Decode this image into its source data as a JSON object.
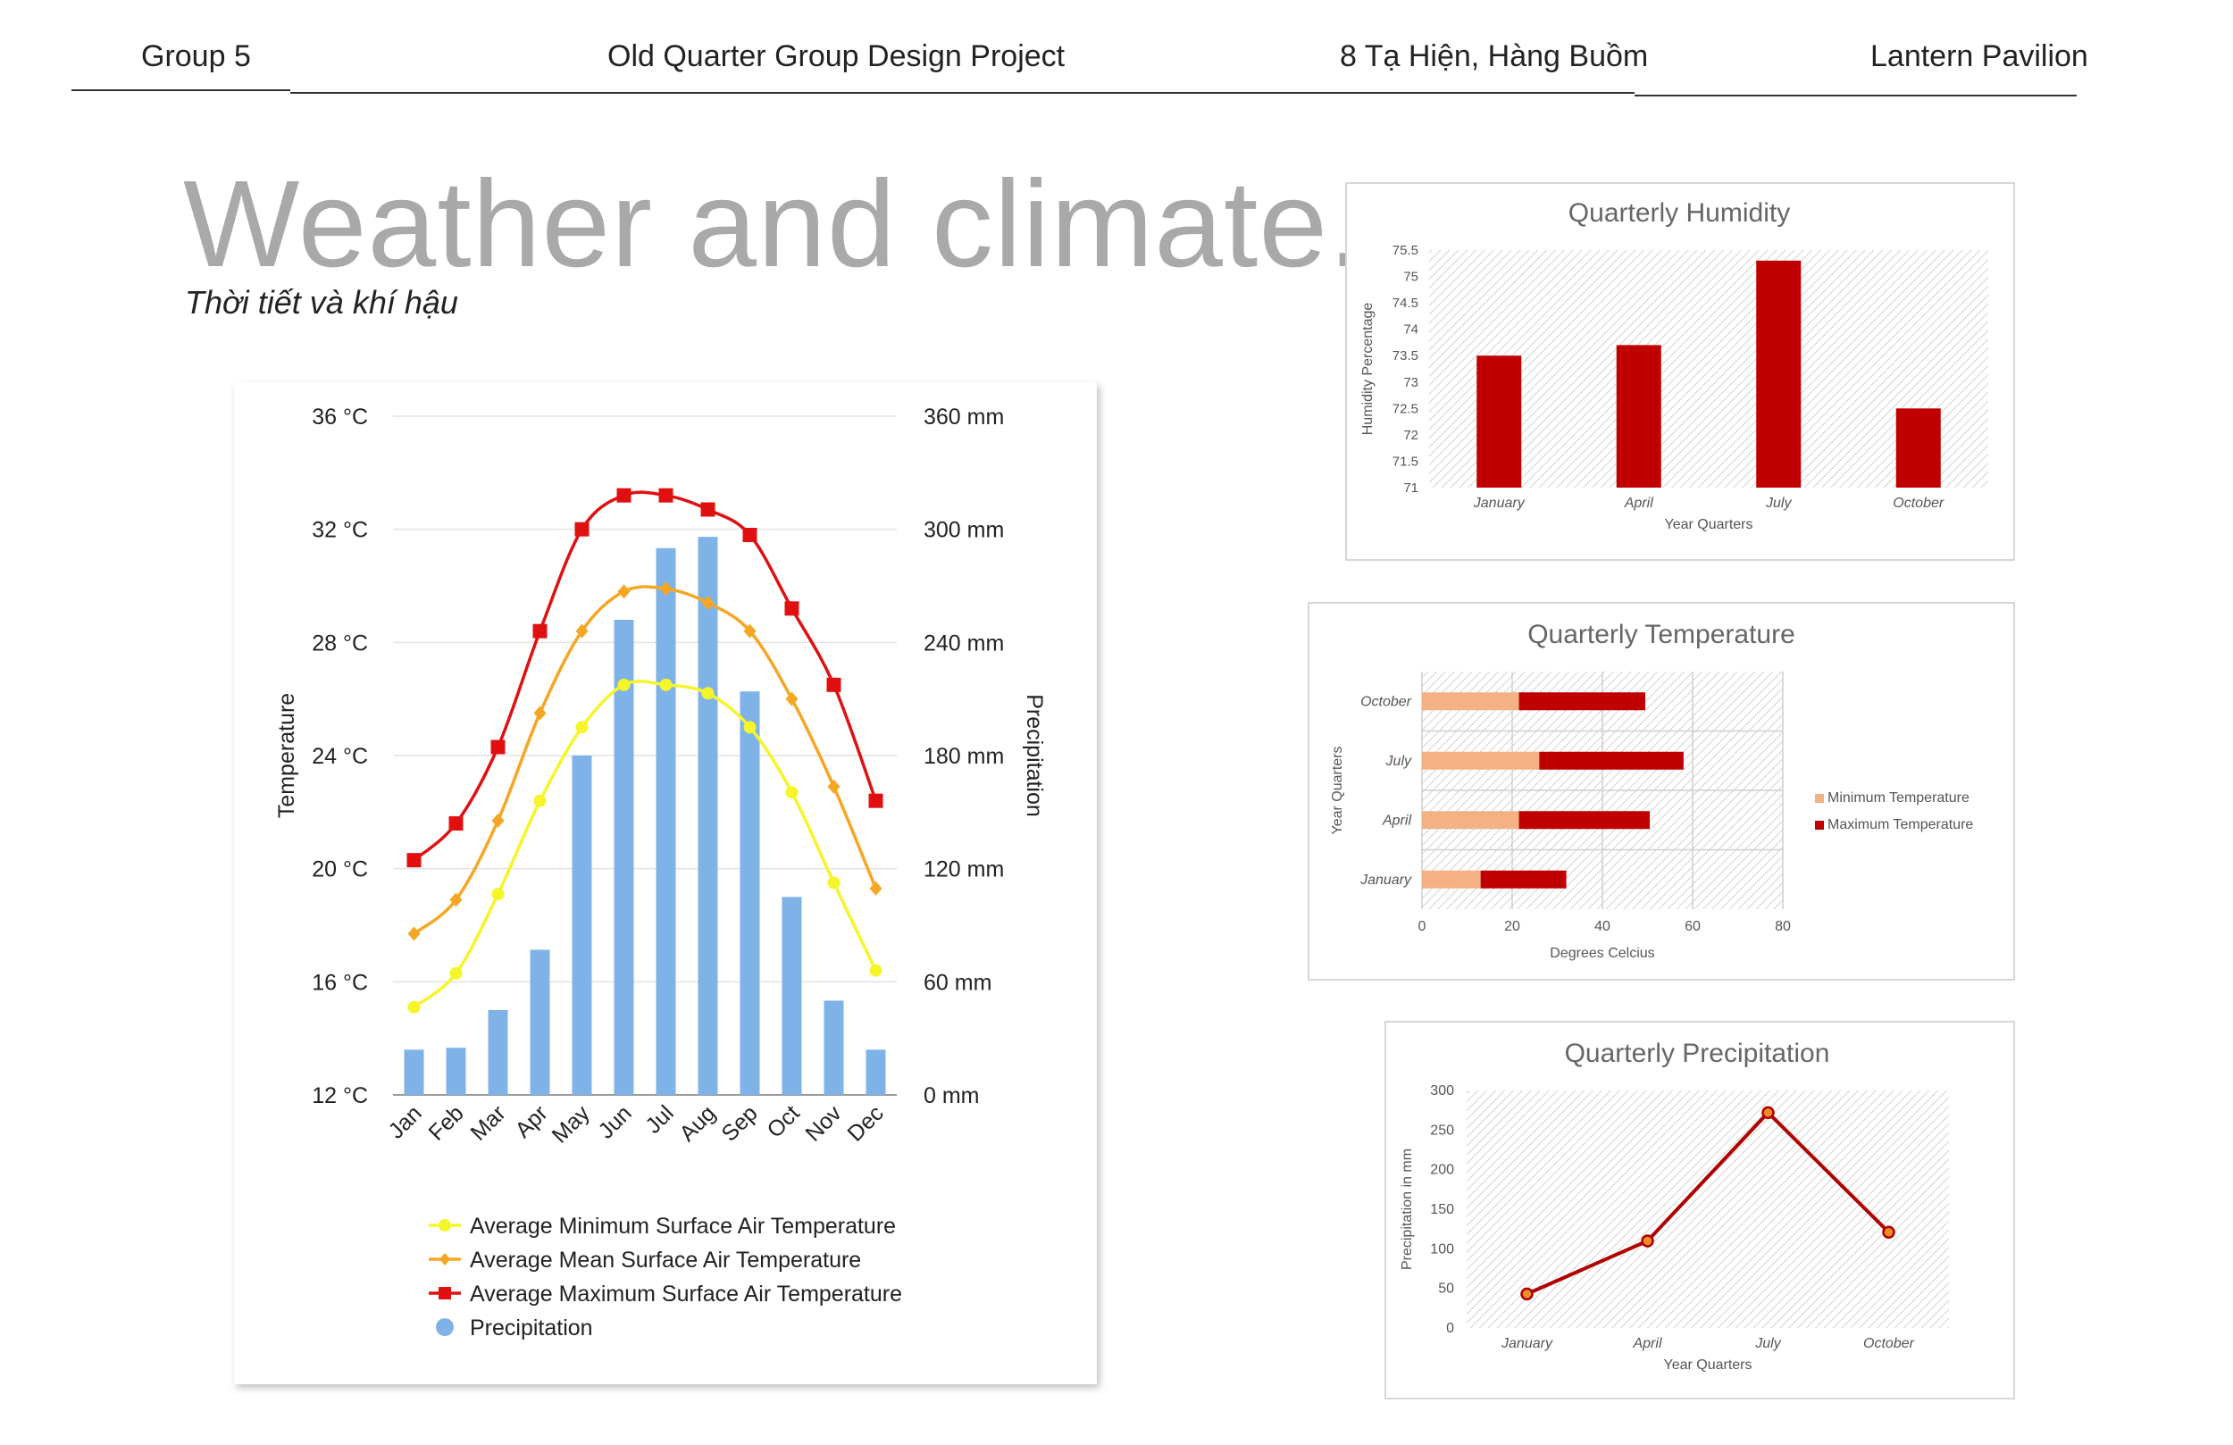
{
  "header": {
    "group": "Group 5",
    "project": "Old Quarter Group Design Project",
    "address": "8 Tạ Hiện, Hàng Buồm",
    "pavilion": "Lantern Pavilion"
  },
  "page": {
    "title": "Weather and climate.",
    "subtitle": "Thời tiết và khí hậu"
  },
  "colors": {
    "min_temp": "#f5f52a",
    "mean_temp": "#f5a623",
    "max_temp": "#e01010",
    "precip": "#7fb3e8",
    "quarter_bar": "#c00000",
    "min_quarter": "#f4b183"
  },
  "chart_data": [
    {
      "type": "bar",
      "id": "monthly",
      "title": "",
      "categories": [
        "Jan",
        "Feb",
        "Mar",
        "Apr",
        "May",
        "Jun",
        "Jul",
        "Aug",
        "Sep",
        "Oct",
        "Nov",
        "Dec"
      ],
      "ylabel": "Temperature",
      "y2label": "Precipitation",
      "ylim": [
        12,
        36
      ],
      "y2lim": [
        0,
        360
      ],
      "yticks": [
        "12 °C",
        "16 °C",
        "20 °C",
        "24 °C",
        "28 °C",
        "32 °C",
        "36 °C"
      ],
      "y2ticks": [
        "0 mm",
        "60 mm",
        "120 mm",
        "180 mm",
        "240 mm",
        "300 mm",
        "360 mm"
      ],
      "series": [
        {
          "name": "Average Minimum Surface Air Temperature",
          "kind": "line",
          "marker": "circle",
          "values": [
            15.1,
            16.3,
            19.1,
            22.4,
            25.0,
            26.5,
            26.5,
            26.2,
            25.0,
            22.7,
            19.5,
            16.4
          ]
        },
        {
          "name": "Average Mean Surface Air Temperature",
          "kind": "line",
          "marker": "diamond",
          "values": [
            17.7,
            18.9,
            21.7,
            25.5,
            28.4,
            29.8,
            29.9,
            29.4,
            28.4,
            26.0,
            22.9,
            19.3
          ]
        },
        {
          "name": "Average Maximum Surface Air Temperature",
          "kind": "line",
          "marker": "square",
          "values": [
            20.3,
            21.6,
            24.3,
            28.4,
            32.0,
            33.2,
            33.2,
            32.7,
            31.8,
            29.2,
            26.5,
            22.4
          ]
        },
        {
          "name": "Precipitation",
          "kind": "bar",
          "axis": "right",
          "values": [
            24,
            25,
            45,
            77,
            180,
            252,
            290,
            296,
            214,
            105,
            50,
            24
          ]
        }
      ]
    },
    {
      "type": "bar",
      "id": "humidity",
      "title": "Quarterly Humidity",
      "categories": [
        "January",
        "April",
        "July",
        "October"
      ],
      "values": [
        73.5,
        73.7,
        75.3,
        72.5
      ],
      "xlabel": "Year Quarters",
      "ylabel": "Humidity Percentage",
      "ylim": [
        71,
        75.5
      ],
      "yticks": [
        "71",
        "71.5",
        "72",
        "72.5",
        "73",
        "73.5",
        "74",
        "74.5",
        "75",
        "75.5"
      ]
    },
    {
      "type": "bar",
      "id": "temperature",
      "orientation": "horizontal",
      "stacked": true,
      "title": "Quarterly Temperature",
      "categories": [
        "January",
        "April",
        "July",
        "October"
      ],
      "series": [
        {
          "name": "Minimum Temperature",
          "values": [
            13,
            21.5,
            26,
            21.5
          ]
        },
        {
          "name": "Maximum Temperature",
          "values": [
            19,
            29,
            32,
            28
          ]
        }
      ],
      "xlabel": "Degrees Celcius",
      "ylabel": "Year Quarters",
      "xlim": [
        0,
        80
      ],
      "xticks": [
        "0",
        "20",
        "40",
        "60",
        "80"
      ],
      "legend": "right"
    },
    {
      "type": "line",
      "id": "precip",
      "title": "Quarterly Precipitation",
      "categories": [
        "January",
        "April",
        "July",
        "October"
      ],
      "values": [
        43,
        110,
        272,
        121
      ],
      "xlabel": "Year Quarters",
      "ylabel": "Precipitation in mm",
      "ylim": [
        0,
        300
      ],
      "yticks": [
        "0",
        "50",
        "100",
        "150",
        "200",
        "250",
        "300"
      ]
    }
  ]
}
